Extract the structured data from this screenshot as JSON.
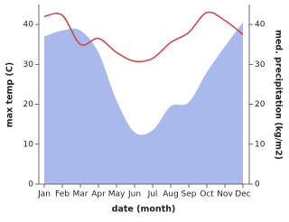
{
  "chart_data": {
    "type": "line",
    "x_label": "date (month)",
    "y_label": "max temp (C)",
    "y2_label": "med. precipitation (kg/m2)",
    "categories": [
      "Jan",
      "Feb",
      "Mar",
      "Apr",
      "May",
      "Jun",
      "Jul",
      "Aug",
      "Sep",
      "Oct",
      "Nov",
      "Dec"
    ],
    "series": [
      {
        "name": "max temp",
        "color": "#c0504d",
        "kind": "line",
        "axis": "y",
        "values": [
          42,
          42.3,
          35,
          36.5,
          33,
          30.8,
          31.5,
          35.5,
          38,
          43,
          41,
          37.5
        ]
      },
      {
        "name": "med. precipitation",
        "color": "#aab9ec",
        "kind": "area",
        "axis": "y2",
        "values": [
          37,
          38.5,
          38.5,
          33,
          21,
          13,
          13.5,
          19.5,
          20.5,
          28,
          34.5,
          40.5
        ]
      }
    ],
    "ylim": [
      0,
      45
    ],
    "yticks": [
      0,
      10,
      20,
      30,
      40
    ],
    "y2lim": [
      0,
      45
    ],
    "y2ticks": [
      0,
      10,
      20,
      30,
      40
    ]
  }
}
